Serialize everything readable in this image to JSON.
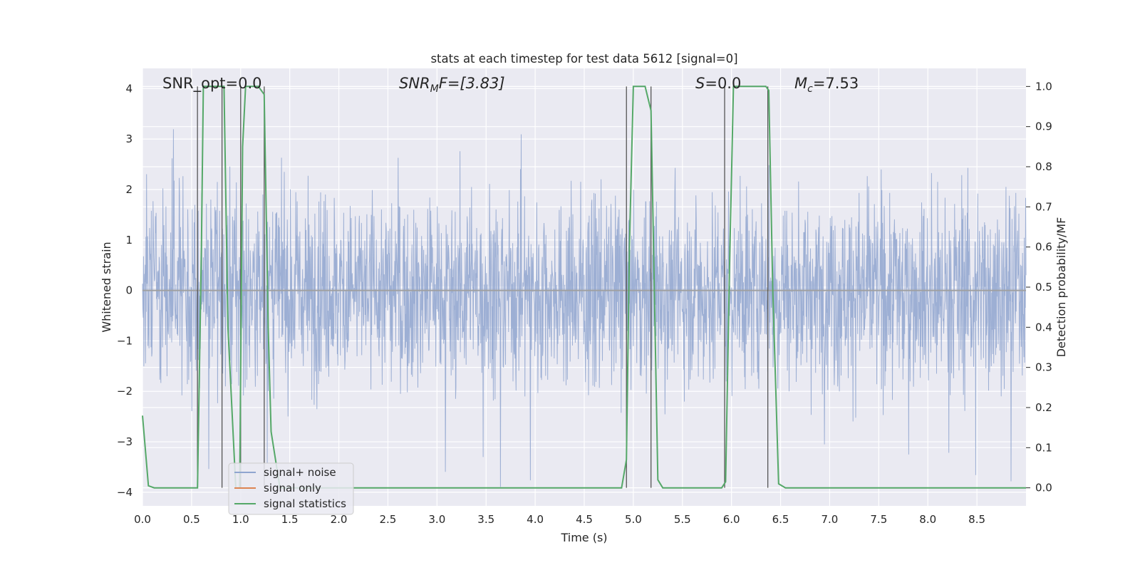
{
  "chart_data": {
    "type": "line",
    "title": "stats at each timestep for test data 5612 [signal=0]",
    "xlabel": "Time (s)",
    "ylabel": "Whitened strain",
    "y2label": "Detection probability/MF",
    "xlim": [
      0.0,
      9.0
    ],
    "ylim": [
      -4.27,
      4.4
    ],
    "y2lim": [
      -0.045,
      1.045
    ],
    "grid": true,
    "legend_position": "lower-left",
    "x_ticks": [
      "0.0",
      "0.5",
      "1.0",
      "1.5",
      "2.0",
      "2.5",
      "3.0",
      "3.5",
      "4.0",
      "4.5",
      "5.0",
      "5.5",
      "6.0",
      "6.5",
      "7.0",
      "7.5",
      "8.0",
      "8.5"
    ],
    "y_ticks": [
      "4",
      "3",
      "2",
      "1",
      "0",
      "−1",
      "−2",
      "−3",
      "−4"
    ],
    "y2_ticks": [
      "1.0",
      "0.9",
      "0.8",
      "0.7",
      "0.6",
      "0.5",
      "0.4",
      "0.3",
      "0.2",
      "0.1",
      "0.0"
    ],
    "annotations": {
      "snr_opt": "SNR_opt=0.0",
      "snr_mf_symbol": "SNR",
      "snr_mf_sub": "M",
      "snr_mf_rest": "F=[3.83]",
      "s_symbol": "S",
      "s_rest": "=0.0",
      "mc_symbol": "M",
      "mc_sub": "c",
      "mc_rest": "=7.53"
    },
    "series": [
      {
        "name": "signal+ noise",
        "axis": "left",
        "color": "#8fa5cf",
        "description_stats": {
          "band_peak": 2.6,
          "band_floor": -2.4,
          "max": 3.3,
          "min": -3.9
        }
      },
      {
        "name": "signal only",
        "axis": "left",
        "color": "#dd8452",
        "x": [
          0.0,
          9.0
        ],
        "y": [
          0.0,
          0.0
        ]
      },
      {
        "name": "signal statistics",
        "axis": "right",
        "color": "#55a868",
        "x": [
          0.0,
          0.06,
          0.12,
          0.3,
          0.56,
          0.6,
          0.62,
          0.8,
          0.83,
          0.87,
          0.95,
          0.99,
          1.0,
          1.02,
          1.05,
          1.18,
          1.24,
          1.28,
          1.31,
          1.4,
          1.6,
          2.0,
          3.0,
          4.0,
          4.88,
          4.93,
          4.96,
          5.0,
          5.12,
          5.18,
          5.25,
          5.3,
          5.5,
          5.9,
          5.94,
          5.98,
          6.02,
          6.2,
          6.35,
          6.38,
          6.42,
          6.48,
          6.55,
          7.0,
          8.0,
          9.0
        ],
        "y": [
          0.18,
          0.005,
          0.0,
          0.0,
          0.0,
          0.6,
          1.0,
          1.0,
          1.0,
          0.4,
          0.0,
          0.0,
          0.3,
          0.85,
          1.0,
          1.0,
          0.98,
          0.4,
          0.14,
          0.0,
          0.0,
          0.0,
          0.0,
          0.0,
          0.0,
          0.07,
          0.6,
          1.0,
          1.0,
          0.94,
          0.02,
          0.0,
          0.0,
          0.0,
          0.015,
          0.55,
          1.0,
          1.0,
          1.0,
          0.99,
          0.5,
          0.01,
          0.0,
          0.0,
          0.0,
          0.0
        ]
      }
    ],
    "vertical_lines_x": [
      0.56,
      0.81,
      1.0,
      1.24,
      4.93,
      5.18,
      5.93,
      6.37
    ]
  },
  "legend": {
    "items": [
      {
        "label": "signal+ noise",
        "color": "#8fa5cf"
      },
      {
        "label": "signal only",
        "color": "#dd8452"
      },
      {
        "label": "signal statistics",
        "color": "#55a868"
      }
    ]
  }
}
